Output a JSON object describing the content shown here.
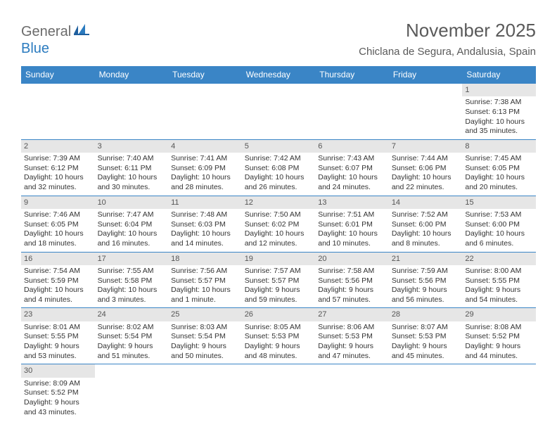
{
  "logo": {
    "part1": "General",
    "part2": "Blue"
  },
  "title": "November 2025",
  "location": "Chiclana de Segura, Andalusia, Spain",
  "day_headers": [
    "Sunday",
    "Monday",
    "Tuesday",
    "Wednesday",
    "Thursday",
    "Friday",
    "Saturday"
  ],
  "colors": {
    "header_bg": "#3a85c6",
    "header_text": "#ffffff",
    "daynum_bg": "#e6e6e6",
    "border": "#3a85c6",
    "title_text": "#5a5a5a",
    "logo_gray": "#6b6b6b",
    "logo_blue": "#2b7bbf",
    "body_text": "#333333"
  },
  "weeks": [
    [
      null,
      null,
      null,
      null,
      null,
      null,
      {
        "n": "1",
        "sr": "Sunrise: 7:38 AM",
        "ss": "Sunset: 6:13 PM",
        "dl": "Daylight: 10 hours and 35 minutes."
      }
    ],
    [
      {
        "n": "2",
        "sr": "Sunrise: 7:39 AM",
        "ss": "Sunset: 6:12 PM",
        "dl": "Daylight: 10 hours and 32 minutes."
      },
      {
        "n": "3",
        "sr": "Sunrise: 7:40 AM",
        "ss": "Sunset: 6:11 PM",
        "dl": "Daylight: 10 hours and 30 minutes."
      },
      {
        "n": "4",
        "sr": "Sunrise: 7:41 AM",
        "ss": "Sunset: 6:09 PM",
        "dl": "Daylight: 10 hours and 28 minutes."
      },
      {
        "n": "5",
        "sr": "Sunrise: 7:42 AM",
        "ss": "Sunset: 6:08 PM",
        "dl": "Daylight: 10 hours and 26 minutes."
      },
      {
        "n": "6",
        "sr": "Sunrise: 7:43 AM",
        "ss": "Sunset: 6:07 PM",
        "dl": "Daylight: 10 hours and 24 minutes."
      },
      {
        "n": "7",
        "sr": "Sunrise: 7:44 AM",
        "ss": "Sunset: 6:06 PM",
        "dl": "Daylight: 10 hours and 22 minutes."
      },
      {
        "n": "8",
        "sr": "Sunrise: 7:45 AM",
        "ss": "Sunset: 6:05 PM",
        "dl": "Daylight: 10 hours and 20 minutes."
      }
    ],
    [
      {
        "n": "9",
        "sr": "Sunrise: 7:46 AM",
        "ss": "Sunset: 6:05 PM",
        "dl": "Daylight: 10 hours and 18 minutes."
      },
      {
        "n": "10",
        "sr": "Sunrise: 7:47 AM",
        "ss": "Sunset: 6:04 PM",
        "dl": "Daylight: 10 hours and 16 minutes."
      },
      {
        "n": "11",
        "sr": "Sunrise: 7:48 AM",
        "ss": "Sunset: 6:03 PM",
        "dl": "Daylight: 10 hours and 14 minutes."
      },
      {
        "n": "12",
        "sr": "Sunrise: 7:50 AM",
        "ss": "Sunset: 6:02 PM",
        "dl": "Daylight: 10 hours and 12 minutes."
      },
      {
        "n": "13",
        "sr": "Sunrise: 7:51 AM",
        "ss": "Sunset: 6:01 PM",
        "dl": "Daylight: 10 hours and 10 minutes."
      },
      {
        "n": "14",
        "sr": "Sunrise: 7:52 AM",
        "ss": "Sunset: 6:00 PM",
        "dl": "Daylight: 10 hours and 8 minutes."
      },
      {
        "n": "15",
        "sr": "Sunrise: 7:53 AM",
        "ss": "Sunset: 6:00 PM",
        "dl": "Daylight: 10 hours and 6 minutes."
      }
    ],
    [
      {
        "n": "16",
        "sr": "Sunrise: 7:54 AM",
        "ss": "Sunset: 5:59 PM",
        "dl": "Daylight: 10 hours and 4 minutes."
      },
      {
        "n": "17",
        "sr": "Sunrise: 7:55 AM",
        "ss": "Sunset: 5:58 PM",
        "dl": "Daylight: 10 hours and 3 minutes."
      },
      {
        "n": "18",
        "sr": "Sunrise: 7:56 AM",
        "ss": "Sunset: 5:57 PM",
        "dl": "Daylight: 10 hours and 1 minute."
      },
      {
        "n": "19",
        "sr": "Sunrise: 7:57 AM",
        "ss": "Sunset: 5:57 PM",
        "dl": "Daylight: 9 hours and 59 minutes."
      },
      {
        "n": "20",
        "sr": "Sunrise: 7:58 AM",
        "ss": "Sunset: 5:56 PM",
        "dl": "Daylight: 9 hours and 57 minutes."
      },
      {
        "n": "21",
        "sr": "Sunrise: 7:59 AM",
        "ss": "Sunset: 5:56 PM",
        "dl": "Daylight: 9 hours and 56 minutes."
      },
      {
        "n": "22",
        "sr": "Sunrise: 8:00 AM",
        "ss": "Sunset: 5:55 PM",
        "dl": "Daylight: 9 hours and 54 minutes."
      }
    ],
    [
      {
        "n": "23",
        "sr": "Sunrise: 8:01 AM",
        "ss": "Sunset: 5:55 PM",
        "dl": "Daylight: 9 hours and 53 minutes."
      },
      {
        "n": "24",
        "sr": "Sunrise: 8:02 AM",
        "ss": "Sunset: 5:54 PM",
        "dl": "Daylight: 9 hours and 51 minutes."
      },
      {
        "n": "25",
        "sr": "Sunrise: 8:03 AM",
        "ss": "Sunset: 5:54 PM",
        "dl": "Daylight: 9 hours and 50 minutes."
      },
      {
        "n": "26",
        "sr": "Sunrise: 8:05 AM",
        "ss": "Sunset: 5:53 PM",
        "dl": "Daylight: 9 hours and 48 minutes."
      },
      {
        "n": "27",
        "sr": "Sunrise: 8:06 AM",
        "ss": "Sunset: 5:53 PM",
        "dl": "Daylight: 9 hours and 47 minutes."
      },
      {
        "n": "28",
        "sr": "Sunrise: 8:07 AM",
        "ss": "Sunset: 5:53 PM",
        "dl": "Daylight: 9 hours and 45 minutes."
      },
      {
        "n": "29",
        "sr": "Sunrise: 8:08 AM",
        "ss": "Sunset: 5:52 PM",
        "dl": "Daylight: 9 hours and 44 minutes."
      }
    ],
    [
      {
        "n": "30",
        "sr": "Sunrise: 8:09 AM",
        "ss": "Sunset: 5:52 PM",
        "dl": "Daylight: 9 hours and 43 minutes."
      },
      null,
      null,
      null,
      null,
      null,
      null
    ]
  ]
}
